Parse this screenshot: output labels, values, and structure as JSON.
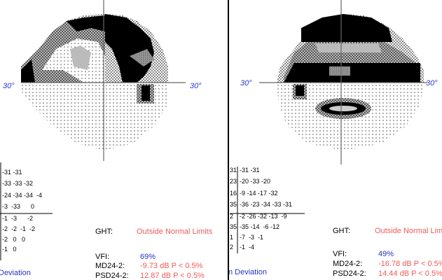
{
  "left_panel": {
    "axis_label_left": "30°",
    "axis_label_right": "30°",
    "deviation_rows": [
      "-31 -31",
      "-33 -33 -32",
      "-24 -34 -34  -4",
      "-3  -33      0",
      "-1  -3      -2",
      "-2  -2  -1  -2",
      "-2   0   0",
      "-1   0"
    ],
    "footer": "Deviation",
    "ght_label": "GHT:",
    "ght_value": "Outside Normal Limits",
    "vfi_label": "VFI:",
    "vfi_value": "69%",
    "md_label": "MD24-2:",
    "md_value": "-9.73 dB P < 0.5%",
    "psd_label": "PSD24-2:",
    "psd_value": "12.87 dB P < 0.5%"
  },
  "right_panel": {
    "axis_label_left": "30°",
    "axis_label_right": "30°",
    "deviation_rows": [
      [
        "31",
        "-31 -31"
      ],
      [
        "23",
        "-20 -33 -20"
      ],
      [
        "16",
        "-9 -14 -17 -32"
      ],
      [
        "35",
        "-36 -23 -34 -33 -31"
      ],
      [
        "2",
        "-2 -26 -32 -13  -9"
      ],
      [
        "35",
        "-35 -14  -6 -12"
      ],
      [
        "1",
        "-7  -3  -1"
      ],
      [
        "2",
        "-1  -4"
      ]
    ],
    "footer": "n Deviation",
    "ght_label": "GHT:",
    "ght_value": "Outside Normal Limits",
    "vfi_label": "VFI:",
    "vfi_value": "49%",
    "md_label": "MD24-2:",
    "md_value": "-16.78 dB P < 0.5%",
    "psd_label": "PSD24-2:",
    "psd_value": "14.44 dB P < 0.5%"
  }
}
